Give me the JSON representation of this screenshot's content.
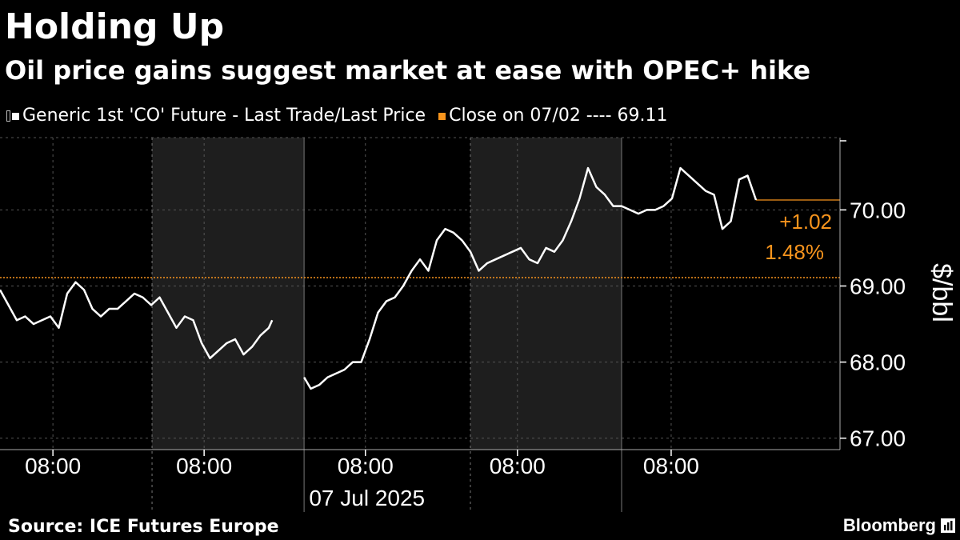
{
  "title": "Holding Up",
  "subtitle": "Oil price gains suggest market at ease with OPEC+ hike",
  "legend": {
    "series_label": "Generic 1st 'CO' Future - Last Trade/Last Price",
    "close_label": "Close on 07/02 ---- 69.11"
  },
  "source": "Source: ICE Futures Europe",
  "brand": "Bloomberg",
  "colors": {
    "line": "#ffffff",
    "accent": "#f7941d",
    "shade": "#1e1e1e",
    "grid": "#555555"
  },
  "chart_data": {
    "type": "line",
    "ylabel": "$/bbl",
    "ylim": [
      66.85,
      70.95
    ],
    "yticks": [
      67.0,
      68.0,
      69.0,
      70.0
    ],
    "ytick_labels": [
      "67.00",
      "68.00",
      "69.00",
      "70.00"
    ],
    "xlim": [
      0,
      100
    ],
    "xtick_labels": [
      "08:00",
      "08:00",
      "08:00",
      "08:00",
      "08:00"
    ],
    "xtick_positions": [
      6.3,
      24.3,
      43.5,
      61.6,
      79.9
    ],
    "date_label": "07 Jul 2025",
    "session_boundaries": [
      0,
      18.1,
      36.2,
      56.0,
      74.0,
      100
    ],
    "shaded_sessions": [
      [
        18.1,
        36.2
      ],
      [
        56.0,
        74.0
      ]
    ],
    "reference_line": {
      "value": 69.11,
      "label": "Close on 07/02"
    },
    "change_annotation": {
      "abs": "+1.02",
      "pct": "1.48%"
    },
    "last_value": 70.13,
    "series": [
      {
        "name": "Generic 1st 'CO' Future - Last Trade/Last Price",
        "x": [
          0,
          1,
          2,
          3,
          4,
          5,
          6,
          7,
          8,
          9,
          10,
          11,
          12,
          13,
          14,
          15,
          16,
          17,
          18,
          19,
          20,
          21,
          22,
          23,
          24,
          25,
          26,
          27,
          28,
          29,
          30,
          31,
          32,
          32.4,
          36.2,
          37,
          38,
          39,
          40,
          41,
          42,
          43,
          44,
          45,
          46,
          47,
          48,
          49,
          50,
          51,
          52,
          53,
          54,
          55,
          56,
          57,
          58,
          59,
          60,
          61,
          62,
          63,
          64,
          65,
          66,
          67,
          68,
          69,
          70,
          71,
          72,
          73,
          74,
          75,
          76,
          77,
          78,
          79,
          80,
          81,
          82,
          83,
          84,
          85,
          86,
          87,
          88,
          89,
          90
        ],
        "values": [
          68.95,
          68.75,
          68.55,
          68.6,
          68.5,
          68.55,
          68.6,
          68.45,
          68.9,
          69.05,
          68.95,
          68.7,
          68.6,
          68.7,
          68.7,
          68.8,
          68.9,
          68.85,
          68.75,
          68.85,
          68.65,
          68.45,
          68.6,
          68.55,
          68.25,
          68.05,
          68.15,
          68.25,
          68.3,
          68.1,
          68.2,
          68.35,
          68.45,
          68.55,
          67.8,
          67.65,
          67.7,
          67.8,
          67.85,
          67.9,
          68.0,
          68.0,
          68.3,
          68.65,
          68.8,
          68.85,
          69.0,
          69.2,
          69.35,
          69.2,
          69.6,
          69.75,
          69.7,
          69.6,
          69.45,
          69.2,
          69.3,
          69.35,
          69.4,
          69.45,
          69.5,
          69.35,
          69.3,
          69.5,
          69.45,
          69.6,
          69.85,
          70.15,
          70.55,
          70.3,
          70.2,
          70.05,
          70.05,
          70.0,
          69.95,
          70.0,
          70.0,
          70.05,
          70.15,
          70.55,
          70.45,
          70.35,
          70.25,
          70.2,
          69.75,
          69.85,
          70.4,
          70.45,
          70.13
        ]
      }
    ]
  }
}
